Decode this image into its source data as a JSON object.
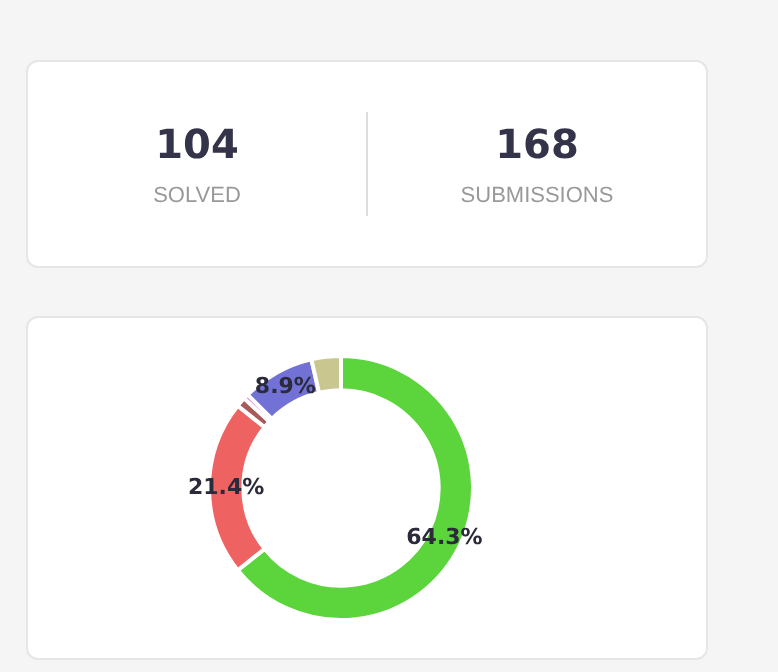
{
  "chart_data": [
    {
      "type": "other",
      "categories": [
        "SOLVED",
        "SUBMISSIONS"
      ],
      "values": [
        104,
        168
      ],
      "data_labels": true
    },
    {
      "type": "donut",
      "categories": [
        null,
        null,
        null,
        null,
        null,
        null
      ],
      "values": [
        64.3,
        21.4,
        1.2,
        0.6,
        8.9,
        3.6
      ],
      "colors": [
        "#5cd43c",
        "#ef6262",
        "#a85a5a",
        "#e050d8",
        "#7272d6",
        "#c9c690"
      ],
      "value_labels": [
        "64.3%",
        "21.4%",
        null,
        null,
        "8.9%",
        null
      ]
    }
  ]
}
